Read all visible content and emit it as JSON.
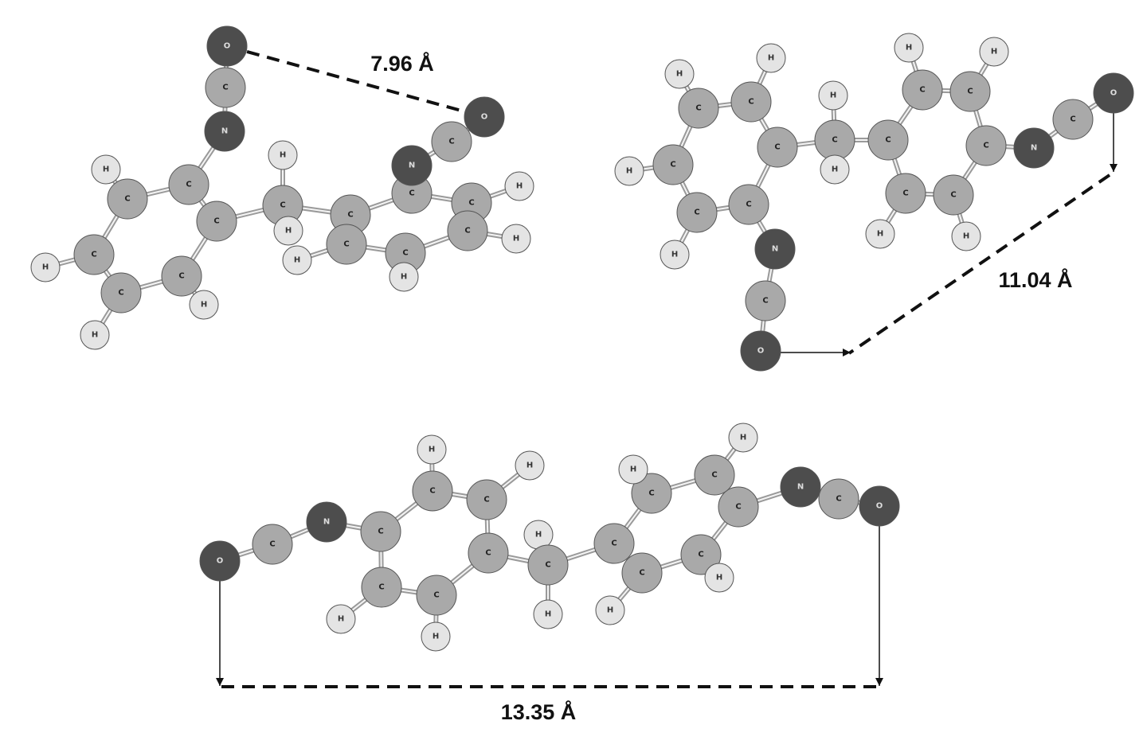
{
  "molecules": [
    {
      "atoms": [
        "O",
        "C",
        "N",
        "H",
        "C",
        "C",
        "C",
        "C",
        "H",
        "H",
        "C",
        "C",
        "N",
        "C",
        "O",
        "C",
        "H",
        "C",
        "H",
        "C",
        "H",
        "C",
        "H",
        "C",
        "H",
        "C",
        "H",
        "C",
        "H"
      ],
      "distance_label": "7.96 Å"
    },
    {
      "atoms": [
        "H",
        "H",
        "C",
        "C",
        "C",
        "H",
        "C",
        "C",
        "C",
        "H",
        "N",
        "C",
        "O",
        "H",
        "C",
        "H",
        "C",
        "C",
        "H",
        "C",
        "H",
        "C",
        "N",
        "C",
        "O",
        "C",
        "H",
        "C",
        "H"
      ],
      "distance_label": "11.04 Å"
    },
    {
      "atoms": [
        "O",
        "C",
        "N",
        "C",
        "C",
        "H",
        "C",
        "H",
        "C",
        "C",
        "H",
        "C",
        "H",
        "H",
        "C",
        "H",
        "C",
        "C",
        "H",
        "C",
        "H",
        "C",
        "C",
        "H",
        "C",
        "H",
        "N",
        "C",
        "O"
      ],
      "distance_label": "13.35 Å"
    }
  ]
}
